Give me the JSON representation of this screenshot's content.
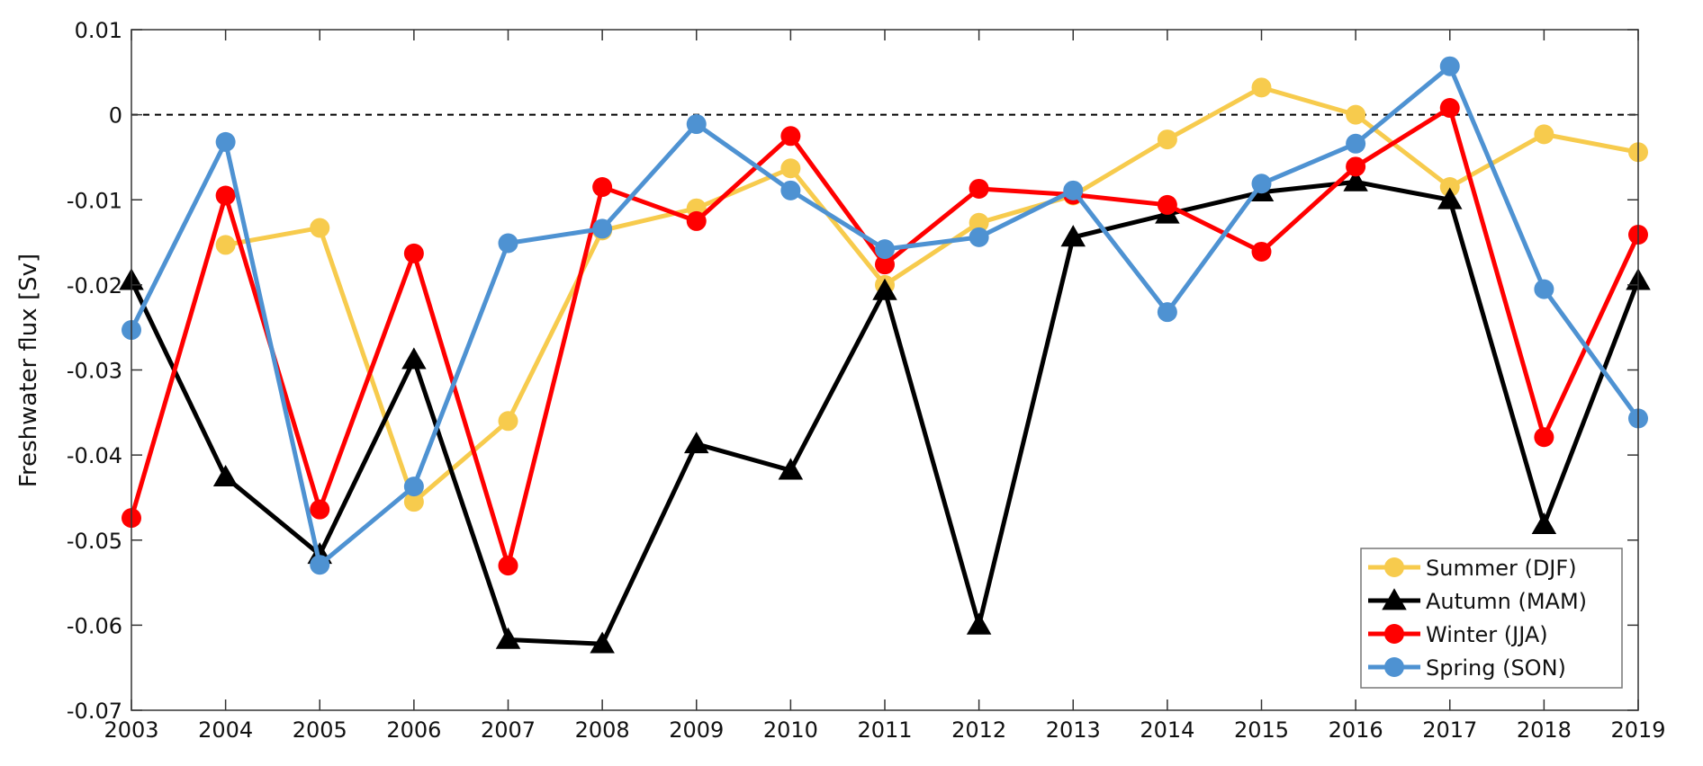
{
  "chart_data": {
    "type": "line",
    "title": "",
    "xlabel": "",
    "ylabel": "Freshwater flux [Sv]",
    "xlim": [
      2003,
      2019
    ],
    "ylim": [
      -0.07,
      0.01
    ],
    "xticks": [
      2003,
      2004,
      2005,
      2006,
      2007,
      2008,
      2009,
      2010,
      2011,
      2012,
      2013,
      2014,
      2015,
      2016,
      2017,
      2018,
      2019
    ],
    "yticks": [
      0.01,
      0,
      -0.01,
      -0.02,
      -0.03,
      -0.04,
      -0.05,
      -0.06,
      -0.07
    ],
    "ytick_labels": [
      "0.01",
      "0",
      "-0.01",
      "-0.02",
      "-0.03",
      "-0.04",
      "-0.05",
      "-0.06",
      "-0.07"
    ],
    "grid": false,
    "reference_line": {
      "y": 0,
      "style": "dashed",
      "color": "#000000"
    },
    "legend_position": "bottom-right",
    "series": [
      {
        "name": "Summer (DJF)",
        "color": "#F7CB4D",
        "marker": "circle",
        "x": [
          2004,
          2005,
          2006,
          2007,
          2008,
          2009,
          2010,
          2011,
          2012,
          2013,
          2014,
          2015,
          2016,
          2017,
          2018,
          2019
        ],
        "values": [
          -0.0153,
          -0.0133,
          -0.0455,
          -0.036,
          -0.0136,
          -0.011,
          -0.0063,
          -0.02,
          -0.0127,
          -0.0095,
          -0.0029,
          0.0032,
          0.0,
          -0.0085,
          -0.0023,
          -0.0044
        ]
      },
      {
        "name": "Autumn (MAM)",
        "color": "#000000",
        "marker": "triangle",
        "x": [
          2003,
          2004,
          2005,
          2006,
          2007,
          2008,
          2009,
          2010,
          2011,
          2012,
          2013,
          2014,
          2015,
          2016,
          2017,
          2018,
          2019
        ],
        "values": [
          -0.0195,
          -0.0426,
          -0.0517,
          -0.0288,
          -0.0617,
          -0.0622,
          -0.0387,
          -0.0418,
          -0.0207,
          -0.06,
          -0.0144,
          -0.0117,
          -0.0091,
          -0.0079,
          -0.01,
          -0.0482,
          -0.0195
        ]
      },
      {
        "name": "Winter (JJA)",
        "color": "#FF0000",
        "marker": "circle",
        "x": [
          2003,
          2004,
          2005,
          2006,
          2007,
          2008,
          2009,
          2010,
          2011,
          2012,
          2013,
          2014,
          2015,
          2016,
          2017,
          2018,
          2019
        ],
        "values": [
          -0.0474,
          -0.0095,
          -0.0464,
          -0.0163,
          -0.053,
          -0.0085,
          -0.0125,
          -0.0025,
          -0.0176,
          -0.0087,
          -0.0094,
          -0.0106,
          -0.0161,
          -0.0061,
          0.0008,
          -0.0379,
          -0.0141
        ]
      },
      {
        "name": "Spring (SON)",
        "color": "#4E92D2",
        "marker": "circle",
        "x": [
          2003,
          2004,
          2005,
          2006,
          2007,
          2008,
          2009,
          2010,
          2011,
          2012,
          2013,
          2014,
          2015,
          2016,
          2017,
          2018,
          2019
        ],
        "values": [
          -0.0253,
          -0.0032,
          -0.0529,
          -0.0437,
          -0.0151,
          -0.0134,
          -0.0011,
          -0.0089,
          -0.0158,
          -0.0144,
          -0.0089,
          -0.0232,
          -0.0081,
          -0.0034,
          0.0057,
          -0.0205,
          -0.0357
        ]
      }
    ]
  }
}
